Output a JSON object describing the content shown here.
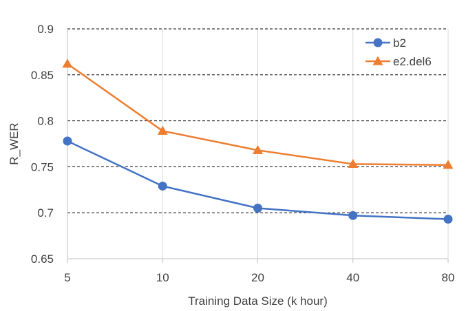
{
  "chart_data": {
    "type": "line",
    "title": "",
    "xlabel": "Training Data Size (k hour)",
    "ylabel": "R_WER",
    "categories": [
      "5",
      "10",
      "20",
      "40",
      "80"
    ],
    "ylim": [
      0.65,
      0.9
    ],
    "yticks": [
      "0.65",
      "0.7",
      "0.75",
      "0.8",
      "0.85",
      "0.9"
    ],
    "grid": {
      "horizontal": "dashed",
      "vertical": "solid-light"
    },
    "legend_position": "top-right",
    "series": [
      {
        "name": "b2",
        "marker": "circle",
        "color": "#4472C4",
        "values": [
          0.778,
          0.729,
          0.705,
          0.697,
          0.693
        ]
      },
      {
        "name": "e2.del6",
        "marker": "triangle",
        "color": "#ED7D31",
        "values": [
          0.862,
          0.789,
          0.768,
          0.753,
          0.752
        ]
      }
    ]
  }
}
